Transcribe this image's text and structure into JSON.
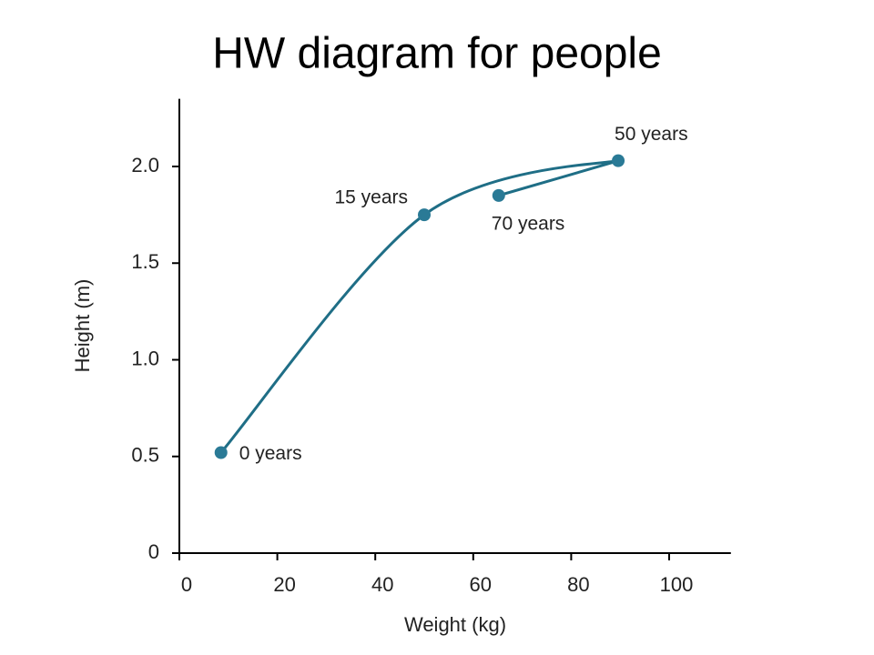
{
  "chart_data": {
    "type": "line",
    "title": "HW diagram for people",
    "x_label": "Weight (kg)",
    "y_label": "Height (m)",
    "series": [
      {
        "color": "#1f6e86",
        "x": [
          8.5,
          50,
          89.6,
          65.2
        ],
        "values": [
          0.52,
          1.75,
          2.03,
          1.85
        ],
        "point_labels": [
          "0 years",
          "15 years",
          "50 years",
          "70 years"
        ]
      }
    ],
    "xlim": [
      0,
      112.6
    ],
    "ylim": [
      0,
      2.35
    ],
    "xticks": [
      0,
      20,
      40,
      60,
      80,
      100
    ],
    "yticks": [
      0,
      0.5,
      {
        "value": 1,
        "label": "1.0"
      },
      1.5,
      {
        "value": 2,
        "label": "2.0"
      }
    ],
    "grid": false
  }
}
